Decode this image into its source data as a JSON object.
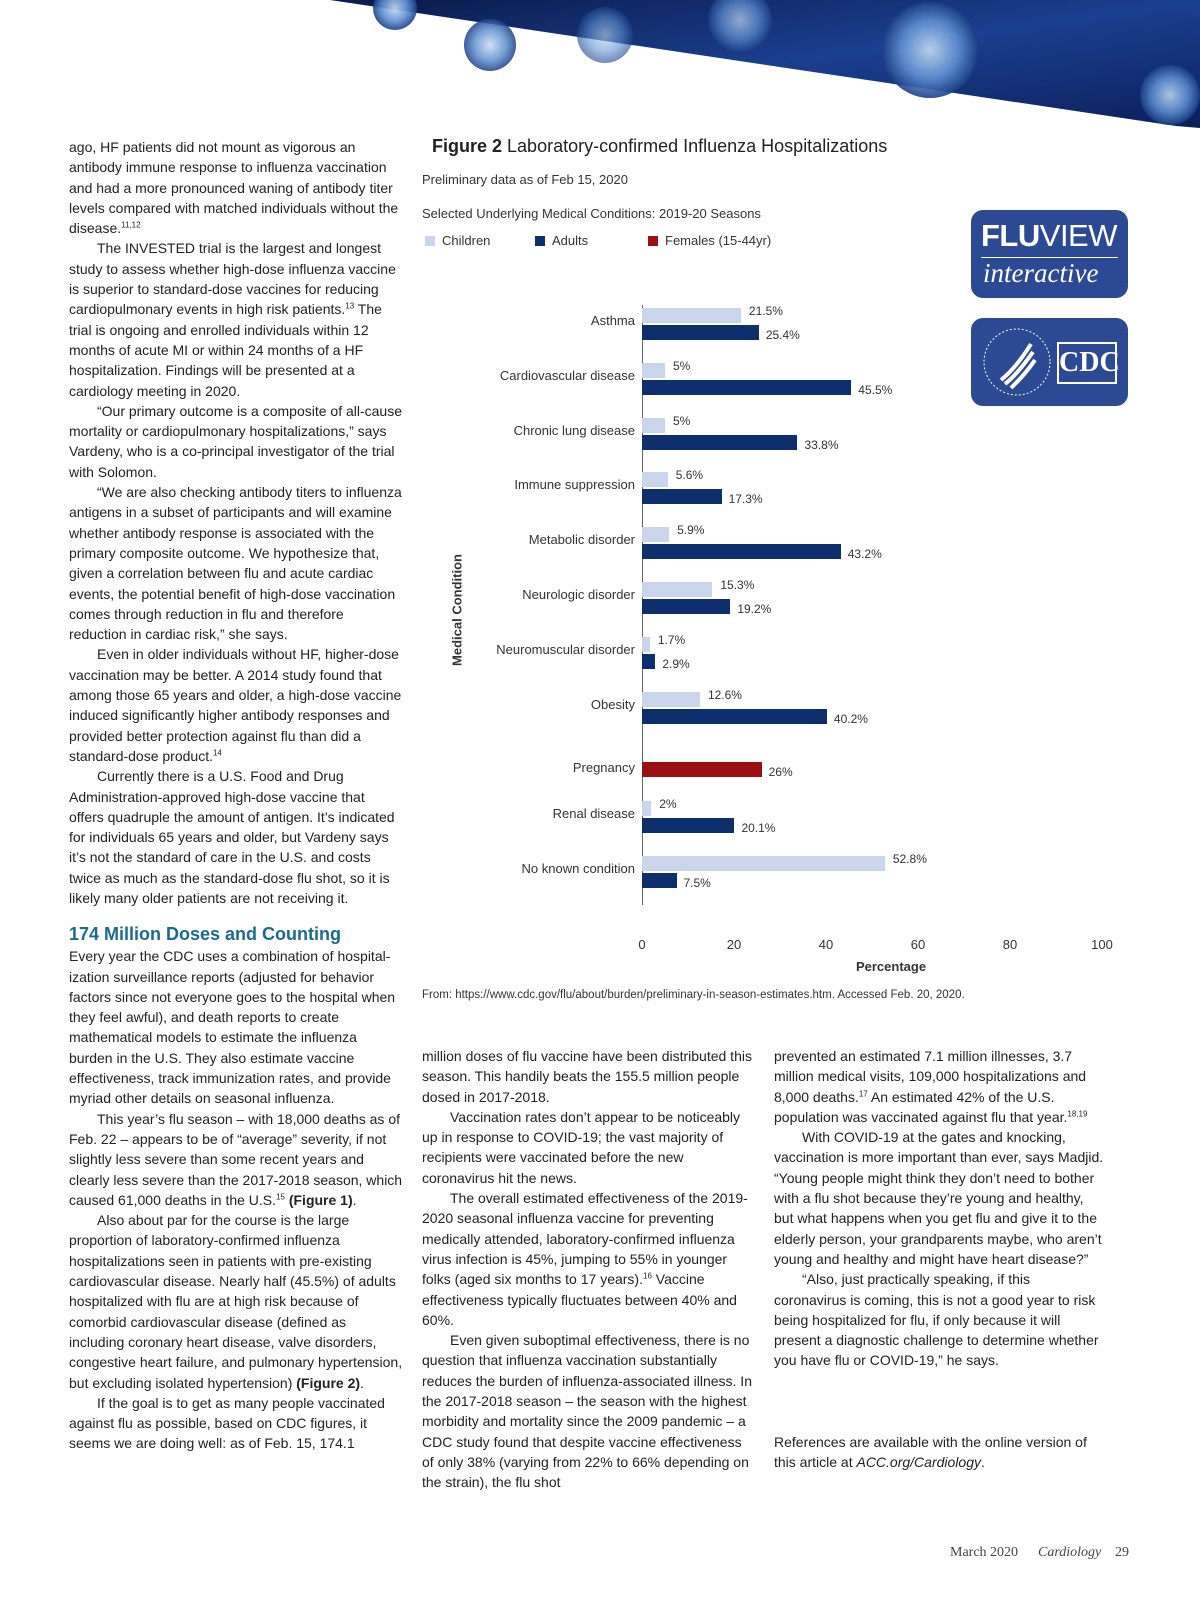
{
  "left_column": {
    "paragraphs_before": [
      {
        "noindent": true,
        "segments": [
          {
            "t": "ago, HF patients did not mount as vigorous an antibody immune response to influenza vaccination and had a more pronounced waning of antibody titer levels compared with matched individuals without the disease."
          },
          {
            "t": "11,12",
            "sup": true
          }
        ]
      },
      {
        "segments": [
          {
            "t": "The INVESTED trial is the largest and longest study to assess whether high-dose influenza vaccine is superior to standard-dose vaccines for reducing cardiopulmonary events in high risk patients."
          },
          {
            "t": "13",
            "sup": true
          },
          {
            "t": " The trial is ongoing and enrolled individuals within 12 months of acute MI or within 24 months of a HF hospitalization. Findings will be presented at a cardiology meeting in 2020."
          }
        ]
      },
      {
        "segments": [
          {
            "t": "“Our primary outcome is a composite of all-cause mortality or cardiopulmonary hospital­izations,” says Vardeny, who is a co-principal investigator of the trial with Solomon."
          }
        ]
      },
      {
        "segments": [
          {
            "t": "“We are also checking antibody titers to influenza antigens in a subset of participants and will examine whether antibody response is associated with the primary composite outcome. We hypothesize that, given a correlation between flu and acute cardiac events, the potential benefit of high-dose vaccination comes through reduction in flu and therefore reduction in cardiac risk,” she says."
          }
        ]
      },
      {
        "segments": [
          {
            "t": "Even in older individuals without HF, higher-dose vaccination may be better. A 2014 study found that among those 65 years and older, a high-dose vaccine induced significantly higher antibody responses and provided better protection against flu than did a standard-dose product."
          },
          {
            "t": "14",
            "sup": true
          }
        ]
      },
      {
        "segments": [
          {
            "t": "Currently there is a U.S. Food and Drug Administration-approved high-dose vaccine that offers quadruple the amount of antigen. It’s indicated for individuals 65 years and older, but Vardeny says it’s not the standard of care in the U.S. and costs twice as much as the standard-dose flu shot, so it is likely many older patients are not receiving it."
          }
        ]
      }
    ],
    "heading": "174 Million Doses and Counting",
    "paragraphs_after": [
      {
        "noindent": true,
        "segments": [
          {
            "t": "Every year the CDC uses a combination of hospital­ization surveillance reports (adjusted for behavior factors since not everyone goes to the hospital when they feel awful), and death reports to create mathematical models to estimate the influenza burden in the U.S. They also estimate vaccine effectiveness, track immunization rates, and provide myriad other details on seasonal influenza."
          }
        ]
      },
      {
        "segments": [
          {
            "t": "This year’s flu season – with 18,000 deaths as of Feb. 22 – appears to be of “average” severity, if not slightly less severe than some recent years and clearly less severe than the 2017-2018 season, which caused 61,000 deaths in the U.S."
          },
          {
            "t": "15",
            "sup": true
          },
          {
            "t": " "
          },
          {
            "t": "(Figure 1)",
            "b": true
          },
          {
            "t": "."
          }
        ]
      },
      {
        "segments": [
          {
            "t": "Also about par for the course is the large proportion of laboratory-confirmed influenza hospitalizations seen in patients with pre-existing cardiovascular disease. Nearly half (45.5%) of adults hospitalized with flu are at high risk because of comorbid cardiovascular disease (defined as including coronary heart disease, valve disorders, congestive heart failure, and pulmonary hypertension, but excluding isolated hypertension) "
          },
          {
            "t": "(Figure 2)",
            "b": true
          },
          {
            "t": "."
          }
        ]
      },
      {
        "segments": [
          {
            "t": "If the goal is to get as many people vaccinated against flu as possible, based on CDC figures, it seems we are doing well: as of Feb. 15, 174.1"
          }
        ]
      }
    ]
  },
  "middle_column": {
    "paragraphs": [
      {
        "noindent": true,
        "segments": [
          {
            "t": "million doses of flu vaccine have been distributed this season. This handily beats the 155.5 million people dosed in 2017-2018."
          }
        ]
      },
      {
        "segments": [
          {
            "t": "Vaccination rates don’t appear to be noticeably up in response to COVID-19; the vast majority of recipients were vaccinated before the new coronavirus hit the news."
          }
        ]
      },
      {
        "segments": [
          {
            "t": "The overall estimated effectiveness of the 2019-2020 seasonal influenza vaccine for preventing medically attended, laboratory-confirmed influenza virus infection is 45%, jumping to 55% in younger folks (aged six months to 17 years)."
          },
          {
            "t": "16",
            "sup": true
          },
          {
            "t": " Vaccine effectiveness typically fluctuates between 40% and 60%."
          }
        ]
      },
      {
        "segments": [
          {
            "t": "Even given suboptimal effectiveness, there is no question that influenza vaccination substan­tially reduces the burden of influenza-associated illness. In the 2017-2018 season – the season with the highest morbidity and mortality since the 2009 pandemic – a CDC study found that despite vaccine effectiveness of only 38% (varying from 22% to 66% depending on the strain), the flu shot"
          }
        ]
      }
    ]
  },
  "right_column": {
    "paragraphs": [
      {
        "noindent": true,
        "segments": [
          {
            "t": "prevented an estimated 7.1 million illnesses, 3.7 million medical visits, 109,000 hospitalizations and 8,000 deaths."
          },
          {
            "t": "17",
            "sup": true
          },
          {
            "t": " An estimated 42% of the U.S. population was vaccinated against flu that year."
          },
          {
            "t": "18,19",
            "sup": true
          }
        ]
      },
      {
        "segments": [
          {
            "t": "With COVID-19 at the gates and knocking, vaccination is more important than ever, says Madjid. “Young people might think they don’t need to bother with a flu shot because they’re young and healthy, but what happens when you get flu and give it to the elderly person, your grandparents maybe, who aren’t young and healthy and might have heart disease?”"
          }
        ]
      },
      {
        "segments": [
          {
            "t": "“Also, just practically speaking, if this coronavirus is coming, this is not a good year to risk being hospitalized for flu, if only because it will present a diagnostic challenge to determine whether you have flu or COVID-19,” he says."
          }
        ]
      }
    ],
    "references_text": "References are available with the online version of this article at ",
    "references_link": "ACC.org/Cardiology",
    "references_end": "."
  },
  "figure": {
    "label": "Figure 2",
    "title": "Laboratory-confirmed Influenza Hospitalizations",
    "subtitle": "Preliminary data as of Feb 15, 2020",
    "source": "From: https://www.cdc.gov/flu/about/burden/preliminary-in-season-estimates.htm. Accessed Feb. 20, 2020.",
    "logos": {
      "fluview_bold": "FLU",
      "fluview_rest": "VIEW",
      "fluview_sub": "interactive",
      "cdc": "CDC"
    }
  },
  "chart_data": {
    "type": "bar",
    "orientation": "horizontal",
    "title": "Selected Underlying Medical Conditions: 2019-20 Seasons",
    "xlabel": "Percentage",
    "ylabel": "Medical Condition",
    "xlim": [
      0,
      100
    ],
    "xticks": [
      0,
      20,
      40,
      60,
      80,
      100
    ],
    "grid": false,
    "legend": {
      "placement": "top-left",
      "entries": [
        {
          "name": "Children",
          "color": "#c9d5ec"
        },
        {
          "name": "Adults",
          "color": "#0e2f6e"
        },
        {
          "name": "Females (15-44yr)",
          "color": "#9b0f14"
        }
      ]
    },
    "categories": [
      "Asthma",
      "Cardiovascular disease",
      "Chronic lung disease",
      "Immune suppression",
      "Metabolic disorder",
      "Neurologic disorder",
      "Neuromuscular disorder",
      "Obesity",
      "Pregnancy",
      "Renal disease",
      "No known condition"
    ],
    "series": [
      {
        "name": "Children",
        "values": [
          21.5,
          5,
          5,
          5.6,
          5.9,
          15.3,
          1.7,
          12.6,
          null,
          2,
          52.8
        ]
      },
      {
        "name": "Adults",
        "values": [
          25.4,
          45.5,
          33.8,
          17.3,
          43.2,
          19.2,
          2.9,
          40.2,
          null,
          20.1,
          7.5
        ]
      },
      {
        "name": "Females (15-44yr)",
        "values": [
          null,
          null,
          null,
          null,
          null,
          null,
          null,
          null,
          26,
          null,
          null
        ]
      }
    ],
    "data_labels": [
      [
        "21.5%",
        "25.4%"
      ],
      [
        "5%",
        "45.5%"
      ],
      [
        "5%",
        "33.8%"
      ],
      [
        "5.6%",
        "17.3%"
      ],
      [
        "5.9%",
        "43.2%"
      ],
      [
        "15.3%",
        "19.2%"
      ],
      [
        "1.7%",
        "2.9%"
      ],
      [
        "12.6%",
        "40.2%"
      ],
      [
        "26%"
      ],
      [
        "2%",
        "20.1%"
      ],
      [
        "52.8%",
        "7.5%"
      ]
    ]
  },
  "footer": {
    "date": "March 2020",
    "magazine": "Cardiology",
    "page": "29"
  }
}
